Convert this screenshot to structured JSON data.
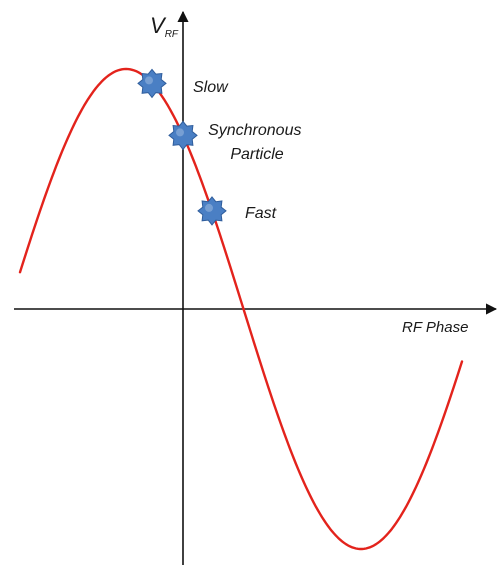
{
  "axes": {
    "y_label_main": "V",
    "y_label_sub": "RF",
    "x_label": "RF Phase"
  },
  "labels": {
    "slow": "Slow",
    "synchronous_line1": "Synchronous",
    "synchronous_line2": "Particle",
    "fast": "Fast"
  },
  "colors": {
    "curve": "#e3231c",
    "axis": "#111111",
    "particle_fill": "#4a7fc4",
    "particle_stroke": "#2f5d9c"
  },
  "particles": [
    "slow",
    "synchronous",
    "fast"
  ]
}
